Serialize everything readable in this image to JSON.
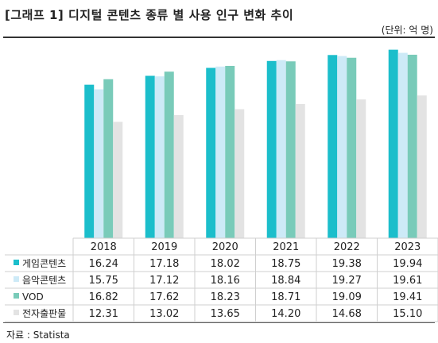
{
  "header": {
    "title": "[그래프 1] 디지털 콘텐츠 종류 별 사용 인구 변화 추이",
    "unit": "(단위: 억 명)"
  },
  "footer": {
    "source": "자료 : Statista"
  },
  "chart_data": {
    "type": "bar",
    "title": "[그래프 1] 디지털 콘텐츠 종류 별 사용 인구 변화 추이",
    "xlabel": "",
    "ylabel": "",
    "unit": "(단위: 억 명)",
    "ylim": [
      0,
      21
    ],
    "grid": false,
    "legend": "table-left",
    "categories": [
      "2018",
      "2019",
      "2020",
      "2021",
      "2022",
      "2023"
    ],
    "series": [
      {
        "name": "게임콘텐츠",
        "color": "#1bbecb",
        "values": [
          16.24,
          17.18,
          18.02,
          18.75,
          19.38,
          19.94
        ]
      },
      {
        "name": "음악콘텐츠",
        "color": "#cdeaf7",
        "values": [
          15.75,
          17.12,
          18.16,
          18.84,
          19.27,
          19.61
        ]
      },
      {
        "name": "VOD",
        "color": "#79cbb9",
        "values": [
          16.82,
          17.62,
          18.23,
          18.71,
          19.09,
          19.41
        ]
      },
      {
        "name": "전자출판물",
        "color": "#e3e3e3",
        "values": [
          12.31,
          13.02,
          13.65,
          14.2,
          14.68,
          15.1
        ]
      }
    ],
    "value_labels": [
      [
        "16.24",
        "17.18",
        "18.02",
        "18.75",
        "19.38",
        "19.94"
      ],
      [
        "15.75",
        "17.12",
        "18.16",
        "18.84",
        "19.27",
        "19.61"
      ],
      [
        "16.82",
        "17.62",
        "18.23",
        "18.71",
        "19.09",
        "19.41"
      ],
      [
        "12.31",
        "13.02",
        "13.65",
        "14.20",
        "14.68",
        "15.10"
      ]
    ]
  }
}
